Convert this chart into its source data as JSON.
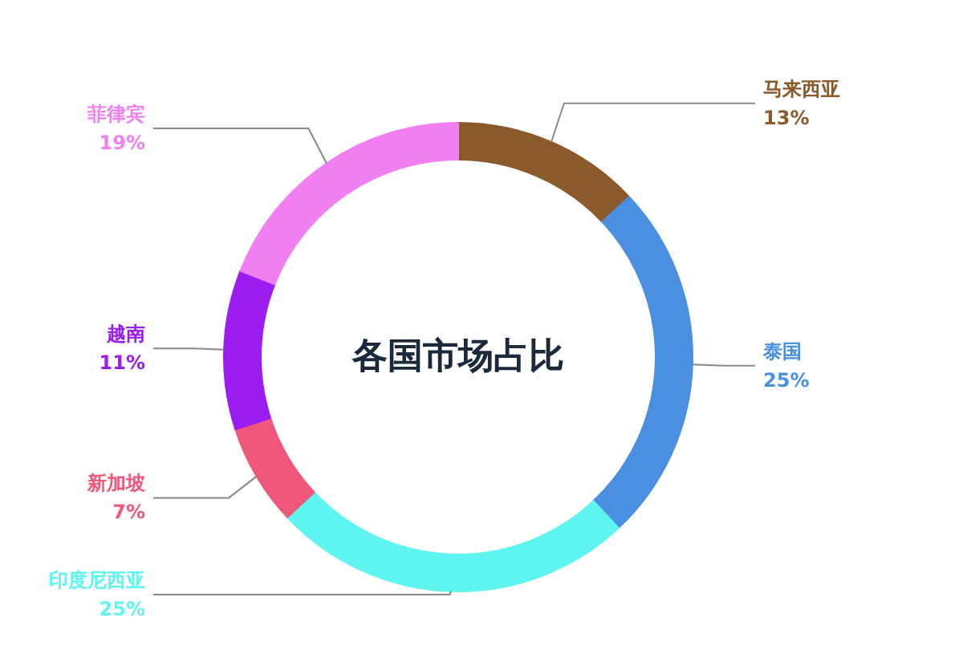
{
  "chart_data": {
    "type": "donut",
    "title": "各国市场占比",
    "categories": [
      "马来西亚",
      "泰国",
      "印度尼西亚",
      "新加坡",
      "越南",
      "菲律宾"
    ],
    "values": [
      13,
      25,
      25,
      7,
      11,
      19
    ],
    "value_labels": [
      "13%",
      "25%",
      "25%",
      "7%",
      "11%",
      "19%"
    ],
    "colors": [
      "#8b5a2b",
      "#4a8fe0",
      "#5ef5f0",
      "#f0587a",
      "#9b1df2",
      "#f27ff2"
    ]
  }
}
